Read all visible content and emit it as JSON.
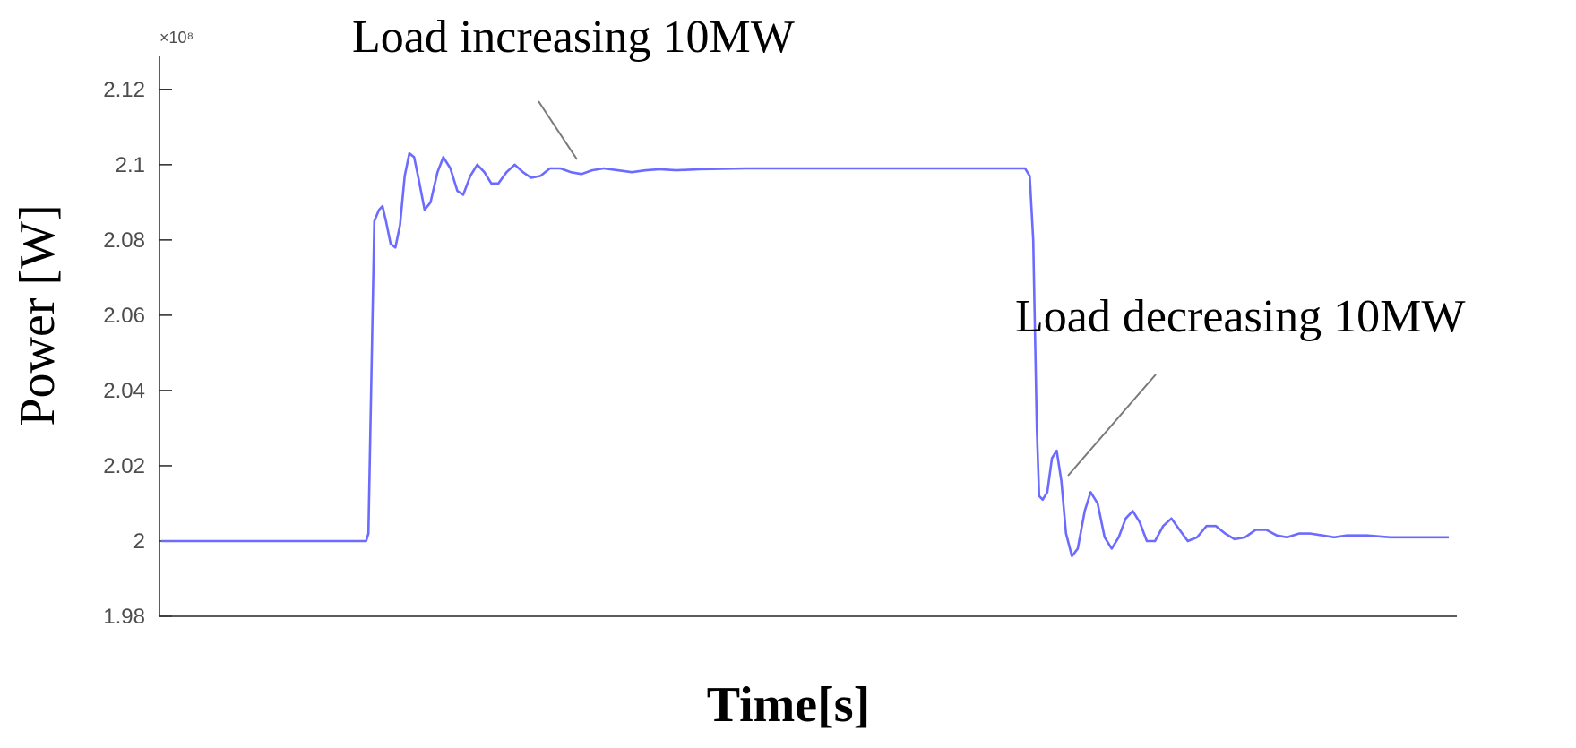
{
  "chart_data": {
    "type": "line",
    "title": "",
    "xlabel": "Time[s]",
    "ylabel": "Power [W]",
    "y_exponent": "×10⁸",
    "ylim": [
      1.98,
      2.129
    ],
    "y_ticks": [
      "1.98",
      "2",
      "2.02",
      "2.04",
      "2.06",
      "2.08",
      "2.1",
      "2.12"
    ],
    "x_ticks_shown": false,
    "grid": false,
    "line_color": "#6b6bff",
    "series": [
      {
        "name": "",
        "points": [
          [
            0.0,
            2.0
          ],
          [
            0.175,
            2.0
          ],
          [
            0.177,
            2.002
          ],
          [
            0.182,
            2.085
          ],
          [
            0.186,
            2.088
          ],
          [
            0.189,
            2.089
          ],
          [
            0.192,
            2.085
          ],
          [
            0.196,
            2.079
          ],
          [
            0.2,
            2.078
          ],
          [
            0.204,
            2.084
          ],
          [
            0.208,
            2.097
          ],
          [
            0.212,
            2.103
          ],
          [
            0.216,
            2.102
          ],
          [
            0.22,
            2.096
          ],
          [
            0.225,
            2.088
          ],
          [
            0.23,
            2.09
          ],
          [
            0.236,
            2.098
          ],
          [
            0.241,
            2.102
          ],
          [
            0.247,
            2.099
          ],
          [
            0.253,
            2.093
          ],
          [
            0.258,
            2.092
          ],
          [
            0.264,
            2.097
          ],
          [
            0.27,
            2.1
          ],
          [
            0.276,
            2.098
          ],
          [
            0.282,
            2.095
          ],
          [
            0.288,
            2.095
          ],
          [
            0.295,
            2.098
          ],
          [
            0.302,
            2.1
          ],
          [
            0.309,
            2.098
          ],
          [
            0.316,
            2.0965
          ],
          [
            0.324,
            2.097
          ],
          [
            0.332,
            2.099
          ],
          [
            0.341,
            2.099
          ],
          [
            0.35,
            2.098
          ],
          [
            0.359,
            2.0975
          ],
          [
            0.368,
            2.0985
          ],
          [
            0.378,
            2.099
          ],
          [
            0.39,
            2.0985
          ],
          [
            0.402,
            2.098
          ],
          [
            0.414,
            2.0985
          ],
          [
            0.426,
            2.0988
          ],
          [
            0.44,
            2.0985
          ],
          [
            0.46,
            2.0988
          ],
          [
            0.5,
            2.099
          ],
          [
            0.56,
            2.099
          ],
          [
            0.62,
            2.099
          ],
          [
            0.68,
            2.099
          ],
          [
            0.738,
            2.099
          ],
          [
            0.742,
            2.097
          ],
          [
            0.745,
            2.08
          ],
          [
            0.748,
            2.03
          ],
          [
            0.75,
            2.012
          ],
          [
            0.753,
            2.011
          ],
          [
            0.757,
            2.013
          ],
          [
            0.761,
            2.022
          ],
          [
            0.765,
            2.024
          ],
          [
            0.769,
            2.016
          ],
          [
            0.773,
            2.002
          ],
          [
            0.778,
            1.996
          ],
          [
            0.783,
            1.998
          ],
          [
            0.789,
            2.008
          ],
          [
            0.794,
            2.013
          ],
          [
            0.8,
            2.01
          ],
          [
            0.806,
            2.001
          ],
          [
            0.812,
            1.998
          ],
          [
            0.818,
            2.001
          ],
          [
            0.824,
            2.006
          ],
          [
            0.83,
            2.008
          ],
          [
            0.836,
            2.005
          ],
          [
            0.842,
            2.0
          ],
          [
            0.849,
            2.0
          ],
          [
            0.856,
            2.004
          ],
          [
            0.863,
            2.006
          ],
          [
            0.87,
            2.003
          ],
          [
            0.877,
            2.0
          ],
          [
            0.885,
            2.001
          ],
          [
            0.893,
            2.004
          ],
          [
            0.901,
            2.004
          ],
          [
            0.909,
            2.002
          ],
          [
            0.917,
            2.0005
          ],
          [
            0.926,
            2.001
          ],
          [
            0.935,
            2.003
          ],
          [
            0.944,
            2.003
          ],
          [
            0.953,
            2.0015
          ],
          [
            0.962,
            2.001
          ],
          [
            0.972,
            2.002
          ],
          [
            0.982,
            2.002
          ],
          [
            0.992,
            2.0015
          ],
          [
            1.002,
            2.001
          ],
          [
            1.013,
            2.0015
          ],
          [
            1.03,
            2.0015
          ],
          [
            1.05,
            2.001
          ],
          [
            1.075,
            2.001
          ],
          [
            1.1,
            2.001
          ]
        ]
      }
    ],
    "annotations": [
      {
        "text": "Load increasing 10MW",
        "target": [
          0.251,
          2.1015
        ]
      },
      {
        "text": "Load decreasing 10MW",
        "target": [
          0.532,
          2.0185
        ]
      }
    ]
  }
}
